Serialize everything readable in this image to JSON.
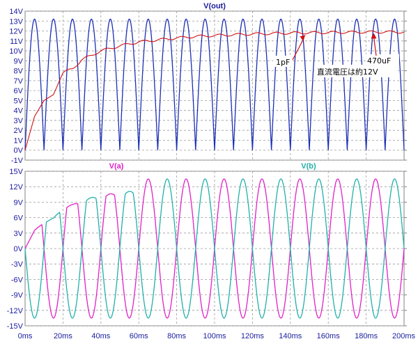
{
  "colors": {
    "axis_text": "#1a1aa0",
    "grid": "#9a9a9a",
    "frame": "#808080",
    "vout_ac": "#1c2fb4",
    "vout_dc": "#d01010",
    "va": "#e020c8",
    "vb": "#20b0a8",
    "annotation_box": "#ffffff"
  },
  "chart_data": [
    {
      "type": "line",
      "title": "V(out)",
      "xlabel": "",
      "ylabel": "",
      "xlim": [
        0,
        200
      ],
      "ylim": [
        -1,
        14
      ],
      "y_tick_labels": [
        "-1V",
        "0V",
        "1V",
        "2V",
        "3V",
        "4V",
        "5V",
        "6V",
        "7V",
        "8V",
        "9V",
        "10V",
        "11V",
        "12V",
        "13V",
        "14V"
      ],
      "grid": true,
      "series": [
        {
          "key": "vout_ac",
          "color": "#1c2fb4",
          "kind": "full-wave rectified sine",
          "frequency_hz": 50,
          "peak_v": 13.2,
          "min_v": 0
        },
        {
          "key": "vout_dc",
          "color": "#d01010",
          "kind": "rectifier output with smoothing capacitor",
          "x": [
            0,
            5,
            10,
            15,
            20,
            25,
            30,
            40,
            50,
            60,
            70,
            80,
            90,
            100,
            120,
            140,
            160,
            180,
            200
          ],
          "y": [
            0,
            3.4,
            5.0,
            5.6,
            7.8,
            8.2,
            9.1,
            10.0,
            10.5,
            10.9,
            11.1,
            11.3,
            11.45,
            11.55,
            11.7,
            11.8,
            11.85,
            11.9,
            11.9
          ]
        }
      ],
      "annotations": [
        {
          "text": "1pF",
          "points_to": [
            148,
            11.6
          ]
        },
        {
          "text": "470uF",
          "points_to": [
            184,
            11.8
          ]
        },
        {
          "text": "直流電圧は約12V"
        }
      ]
    },
    {
      "type": "line",
      "title": "",
      "xlim": [
        0,
        200
      ],
      "ylim": [
        -15,
        15
      ],
      "x_tick_labels": [
        "0ms",
        "20ms",
        "40ms",
        "60ms",
        "80ms",
        "100ms",
        "120ms",
        "140ms",
        "160ms",
        "180ms",
        "200ms"
      ],
      "y_tick_labels": [
        "-15V",
        "-12V",
        "-9V",
        "-6V",
        "-3V",
        "0V",
        "3V",
        "6V",
        "9V",
        "12V",
        "15V"
      ],
      "grid": true,
      "series": [
        {
          "name": "V(a)",
          "key": "va",
          "color": "#e020c8",
          "kind": "sine",
          "frequency_hz": 50,
          "amplitude_v": 13.5,
          "phase": "sin"
        },
        {
          "name": "V(b)",
          "key": "vb",
          "color": "#20b0a8",
          "kind": "sine",
          "frequency_hz": 50,
          "amplitude_v": 13.5,
          "phase": "-sin"
        }
      ]
    }
  ]
}
